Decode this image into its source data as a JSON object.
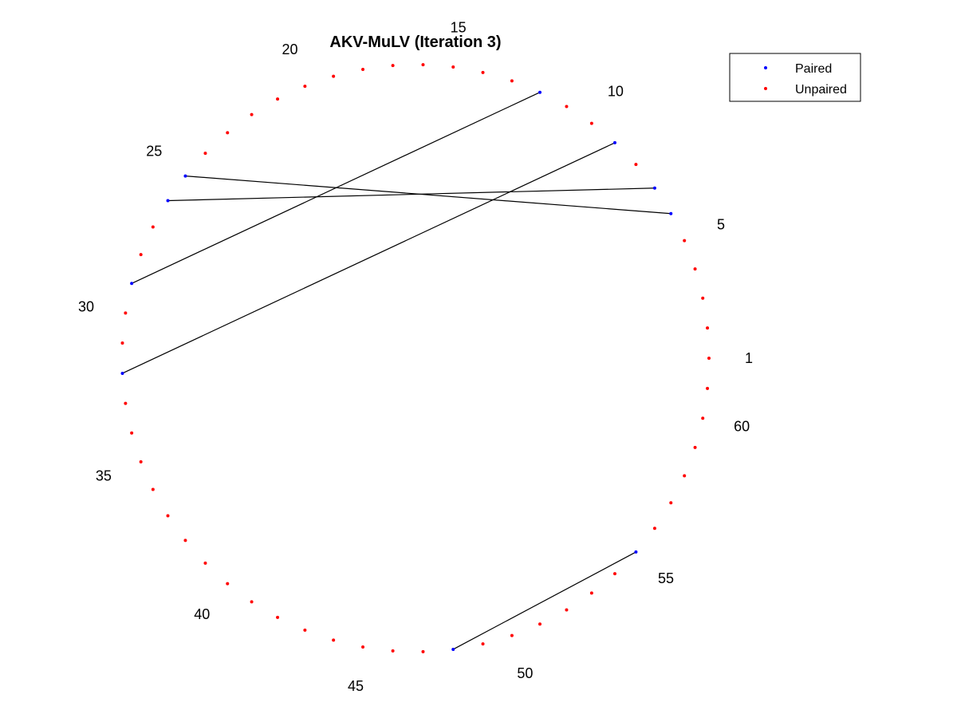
{
  "chart_data": {
    "type": "scatter",
    "title": "AKV-MuLV (Iteration 3)",
    "n_positions": 61,
    "label_interval": 5,
    "labels": [
      "1",
      "5",
      "10",
      "15",
      "20",
      "25",
      "30",
      "35",
      "40",
      "45",
      "50",
      "55",
      "60"
    ],
    "pairs": [
      [
        7,
        26
      ],
      [
        6,
        25
      ],
      [
        9,
        32
      ],
      [
        12,
        29
      ],
      [
        48,
        55
      ]
    ],
    "series": [
      {
        "name": "Paired",
        "positions": [
          6,
          7,
          9,
          12,
          25,
          26,
          29,
          32,
          48,
          55
        ],
        "color": "#0000ff"
      },
      {
        "name": "Unpaired",
        "color": "#ff0000"
      }
    ],
    "link_color": "#000000",
    "legend_position": "top-right",
    "grid": false
  }
}
